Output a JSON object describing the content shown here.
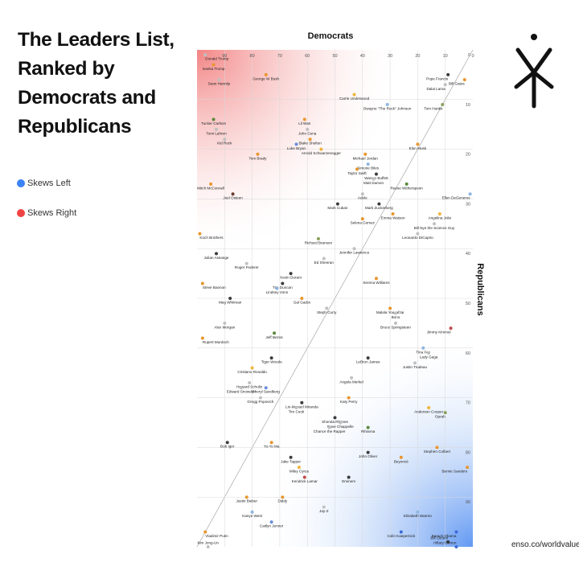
{
  "title": "The Leaders List, Ranked by Democrats and Republicans",
  "legend": {
    "left_label": "Skews Left",
    "right_label": "Skews Right",
    "left_color": "#3b82f6",
    "right_color": "#ef4444"
  },
  "source": "enso.co/worldvalue",
  "logo_icon": "enso-figure-logo",
  "chart_data": {
    "type": "scatter",
    "xlabel": "Democrats",
    "ylabel": "Republicans",
    "x_axis_position": "top",
    "y_axis_position": "right",
    "x_reversed": true,
    "xlim": [
      100,
      0
    ],
    "ylim": [
      0,
      100
    ],
    "x_ticks": [
      90,
      80,
      70,
      60,
      50,
      40,
      30,
      20,
      10,
      0
    ],
    "y_ticks": [
      0,
      10,
      20,
      30,
      40,
      50,
      60,
      70,
      80,
      90
    ],
    "grid": true,
    "points": [
      {
        "label": "Donald Trump",
        "x": 97,
        "y": 1,
        "color": "#c0c0c0"
      },
      {
        "label": "Ivanka Trump",
        "x": 94,
        "y": 3,
        "color": "#e8962e"
      },
      {
        "label": "Sean Hannity",
        "x": 92,
        "y": 6,
        "color": "#c0c0c0"
      },
      {
        "label": "George W Bush",
        "x": 75,
        "y": 5,
        "color": "#e8962e"
      },
      {
        "label": "Pope Francis",
        "x": 9,
        "y": 5,
        "color": "#3c3c3c"
      },
      {
        "label": "Dalai Lama",
        "x": 10,
        "y": 7,
        "color": "#c0c0c0"
      },
      {
        "label": "Bill Gates",
        "x": 3,
        "y": 6,
        "color": "#e8962e"
      },
      {
        "label": "Carrie Underwood",
        "x": 43,
        "y": 9,
        "color": "#f0b43c"
      },
      {
        "label": "Dwayne \"The Rock\" Johnson",
        "x": 31,
        "y": 11,
        "color": "#8fb4e0"
      },
      {
        "label": "Tom Hanks",
        "x": 11,
        "y": 11,
        "color": "#8aa05a"
      },
      {
        "label": "Tucker Carlson",
        "x": 94,
        "y": 14,
        "color": "#5a8a3c"
      },
      {
        "label": "Tomi Lahren",
        "x": 93,
        "y": 16,
        "color": "#c0c0c0"
      },
      {
        "label": "Kid Rock",
        "x": 90,
        "y": 18,
        "color": "#c0c0c0"
      },
      {
        "label": "Lil Wan",
        "x": 61,
        "y": 14,
        "color": "#e8962e"
      },
      {
        "label": "John Cena",
        "x": 60,
        "y": 16,
        "color": "#c0c0c0"
      },
      {
        "label": "Blake Shelton",
        "x": 59,
        "y": 18,
        "color": "#e8962e"
      },
      {
        "label": "Luke Bryan",
        "x": 64,
        "y": 19,
        "color": "#6a8fd8"
      },
      {
        "label": "Elon Musk",
        "x": 20,
        "y": 19,
        "color": "#e8962e"
      },
      {
        "label": "Arnold Schwarzenegger",
        "x": 55,
        "y": 20,
        "color": "#f0b43c"
      },
      {
        "label": "Michael Jordan",
        "x": 39,
        "y": 21,
        "color": "#e8962e"
      },
      {
        "label": "Tom Brady",
        "x": 78,
        "y": 21,
        "color": "#e8962e"
      },
      {
        "label": "Simone Biles",
        "x": 38,
        "y": 23,
        "color": "#8fb4e0"
      },
      {
        "label": "Taylor Swift",
        "x": 42,
        "y": 24,
        "color": "#e8962e"
      },
      {
        "label": "Warren Buffett",
        "x": 35,
        "y": 25,
        "color": "#3c3c3c"
      },
      {
        "label": "Matt Damon",
        "x": 36,
        "y": 26,
        "color": "#c0c0c0"
      },
      {
        "label": "Reese Witherspoon",
        "x": 24,
        "y": 27,
        "color": "#5a8a3c"
      },
      {
        "label": "Mitch McConnell",
        "x": 95,
        "y": 27,
        "color": "#e8962e"
      },
      {
        "label": "Joel Osteen",
        "x": 87,
        "y": 29,
        "color": "#6a3c2c"
      },
      {
        "label": "Adele",
        "x": 40,
        "y": 29,
        "color": "#c0c0c0"
      },
      {
        "label": "Ellen DeGeneres",
        "x": 1,
        "y": 29,
        "color": "#8fb4e0"
      },
      {
        "label": "Mark Cuban",
        "x": 49,
        "y": 31,
        "color": "#3c3c3c"
      },
      {
        "label": "Mark Zuckerberg",
        "x": 34,
        "y": 31,
        "color": "#3c3c3c"
      },
      {
        "label": "Emma Watson",
        "x": 29,
        "y": 33,
        "color": "#e8962e"
      },
      {
        "label": "Angelina Jolie",
        "x": 12,
        "y": 33,
        "color": "#f0b43c"
      },
      {
        "label": "Selena Gomez",
        "x": 40,
        "y": 34,
        "color": "#e8962e"
      },
      {
        "label": "Bill Nye the Science Guy",
        "x": 14,
        "y": 35,
        "color": "#c0c0c0"
      },
      {
        "label": "Leonardo DiCaprio",
        "x": 20,
        "y": 37,
        "color": "#c0c0c0"
      },
      {
        "label": "Koch Brothers",
        "x": 99,
        "y": 37,
        "color": "#e8962e"
      },
      {
        "label": "Richard Branson",
        "x": 56,
        "y": 38,
        "color": "#8aa05a"
      },
      {
        "label": "Jennifer Lawrence",
        "x": 43,
        "y": 40,
        "color": "#c0c0c0"
      },
      {
        "label": "Julian Assange",
        "x": 93,
        "y": 41,
        "color": "#3c3c3c"
      },
      {
        "label": "Roger Federer",
        "x": 82,
        "y": 43,
        "color": "#c0c0c0"
      },
      {
        "label": "Ed Sheeran",
        "x": 54,
        "y": 42,
        "color": "#c0c0c0"
      },
      {
        "label": "Kevin Durant",
        "x": 66,
        "y": 45,
        "color": "#3c3c3c"
      },
      {
        "label": "Serena Williams",
        "x": 35,
        "y": 46,
        "color": "#e8962e"
      },
      {
        "label": "Steve Bannon",
        "x": 98,
        "y": 47,
        "color": "#e8962e"
      },
      {
        "label": "Tim Duncan",
        "x": 69,
        "y": 47,
        "color": "#3c3c3c"
      },
      {
        "label": "Lindsey Vonn",
        "x": 71,
        "y": 48,
        "color": "#8fb4e0"
      },
      {
        "label": "Meg Whitman",
        "x": 88,
        "y": 50,
        "color": "#3c3c3c"
      },
      {
        "label": "Gal Gadot",
        "x": 62,
        "y": 50,
        "color": "#e8962e"
      },
      {
        "label": "Steph Curry",
        "x": 53,
        "y": 52,
        "color": "#c0c0c0"
      },
      {
        "label": "Malala Yousafzai",
        "x": 30,
        "y": 52,
        "color": "#e8962e"
      },
      {
        "label": "Bono",
        "x": 28,
        "y": 53,
        "color": "#c0c0c0"
      },
      {
        "label": "Bruce Springsteen",
        "x": 28,
        "y": 55,
        "color": "#c0c0c0"
      },
      {
        "label": "Alex Morgan",
        "x": 90,
        "y": 55,
        "color": "#c0c0c0"
      },
      {
        "label": "Jimmy Kimmel",
        "x": 8,
        "y": 56,
        "color": "#c04a4a"
      },
      {
        "label": "Rupert Murdoch",
        "x": 98,
        "y": 58,
        "color": "#e8962e"
      },
      {
        "label": "Jeff Bezos",
        "x": 72,
        "y": 57,
        "color": "#5a8a3c"
      },
      {
        "label": "Tina Fey",
        "x": 18,
        "y": 60,
        "color": "#8fb4e0"
      },
      {
        "label": "Lady Gaga",
        "x": 16,
        "y": 61,
        "color": "#c0c0c0"
      },
      {
        "label": "LeBron James",
        "x": 38,
        "y": 62,
        "color": "#3c3c3c"
      },
      {
        "label": "Justin Trudeau",
        "x": 21,
        "y": 63,
        "color": "#c0c0c0"
      },
      {
        "label": "Tiger Woods",
        "x": 73,
        "y": 62,
        "color": "#3c3c3c"
      },
      {
        "label": "Cristiano Ronaldo",
        "x": 80,
        "y": 64,
        "color": "#f0b43c"
      },
      {
        "label": "Angela Merkel",
        "x": 44,
        "y": 66,
        "color": "#c0c0c0"
      },
      {
        "label": "Howard Schultz",
        "x": 81,
        "y": 67,
        "color": "#c0c0c0"
      },
      {
        "label": "Sheryl Sandberg",
        "x": 75,
        "y": 68,
        "color": "#6a8fd8"
      },
      {
        "label": "Edward Snowden",
        "x": 84,
        "y": 68,
        "color": "#c0c0c0"
      },
      {
        "label": "Gregg Popovich",
        "x": 77,
        "y": 70,
        "color": "#c0c0c0"
      },
      {
        "label": "Katy Perry",
        "x": 45,
        "y": 70,
        "color": "#e8962e"
      },
      {
        "label": "Lin-Manuel Miranda",
        "x": 62,
        "y": 71,
        "color": "#3c3c3c"
      },
      {
        "label": "Tim Cook",
        "x": 64,
        "y": 72,
        "color": "#c0c0c0"
      },
      {
        "label": "Anderson Cooper",
        "x": 16,
        "y": 72,
        "color": "#f0b43c"
      },
      {
        "label": "Oprah",
        "x": 10,
        "y": 73,
        "color": "#8aa05a"
      },
      {
        "label": "Shonda Rhimes",
        "x": 50,
        "y": 74,
        "color": "#3c3c3c"
      },
      {
        "label": "Dave Chappelle",
        "x": 48,
        "y": 75,
        "color": "#c0c0c0"
      },
      {
        "label": "Chance the Rapper",
        "x": 52,
        "y": 76,
        "color": "#c0c0c0"
      },
      {
        "label": "Rihanna",
        "x": 38,
        "y": 76,
        "color": "#5a8a3c"
      },
      {
        "label": "Bob Iger",
        "x": 89,
        "y": 79,
        "color": "#3c3c3c"
      },
      {
        "label": "Yo-Yo Ma",
        "x": 73,
        "y": 79,
        "color": "#e8962e"
      },
      {
        "label": "Stephen Colbert",
        "x": 13,
        "y": 80,
        "color": "#e8962e"
      },
      {
        "label": "John Oliver",
        "x": 38,
        "y": 81,
        "color": "#3c3c3c"
      },
      {
        "label": "Beyoncé",
        "x": 26,
        "y": 82,
        "color": "#e8962e"
      },
      {
        "label": "Bernie Sanders",
        "x": 2,
        "y": 84,
        "color": "#e8962e"
      },
      {
        "label": "Jake Tapper",
        "x": 66,
        "y": 82,
        "color": "#3c3c3c"
      },
      {
        "label": "Miley Cyrus",
        "x": 63,
        "y": 84,
        "color": "#f0b43c"
      },
      {
        "label": "Kendrick Lamar",
        "x": 61,
        "y": 86,
        "color": "#c04a4a"
      },
      {
        "label": "Eminem",
        "x": 45,
        "y": 86,
        "color": "#3c3c3c"
      },
      {
        "label": "Justin Bieber",
        "x": 82,
        "y": 90,
        "color": "#e8962e"
      },
      {
        "label": "Diddy",
        "x": 69,
        "y": 90,
        "color": "#e8962e"
      },
      {
        "label": "Jay-Z",
        "x": 54,
        "y": 92,
        "color": "#c0c0c0"
      },
      {
        "label": "Kanye West",
        "x": 80,
        "y": 93,
        "color": "#8fb4e0"
      },
      {
        "label": "Caitlyn Jenner",
        "x": 73,
        "y": 95,
        "color": "#6a8fd8"
      },
      {
        "label": "Elizabeth Warren",
        "x": 20,
        "y": 93,
        "color": "#8fb4e0"
      },
      {
        "label": "Colin Kaepernick",
        "x": 26,
        "y": 97,
        "color": "#3c6ad8"
      },
      {
        "label": "Barack Obama",
        "x": 6,
        "y": 97,
        "color": "#3c6ad8"
      },
      {
        "label": "Bill Clinton",
        "x": 9,
        "y": 99,
        "color": "#3c3c3c"
      },
      {
        "label": "Hillary Clinton",
        "x": 6,
        "y": 100,
        "color": "#3c6ad8"
      },
      {
        "label": "Vladimir Putin",
        "x": 97,
        "y": 97,
        "color": "#e8962e"
      },
      {
        "label": "Kim Jong-Un",
        "x": 96,
        "y": 100,
        "color": "#c0c0c0"
      }
    ]
  }
}
